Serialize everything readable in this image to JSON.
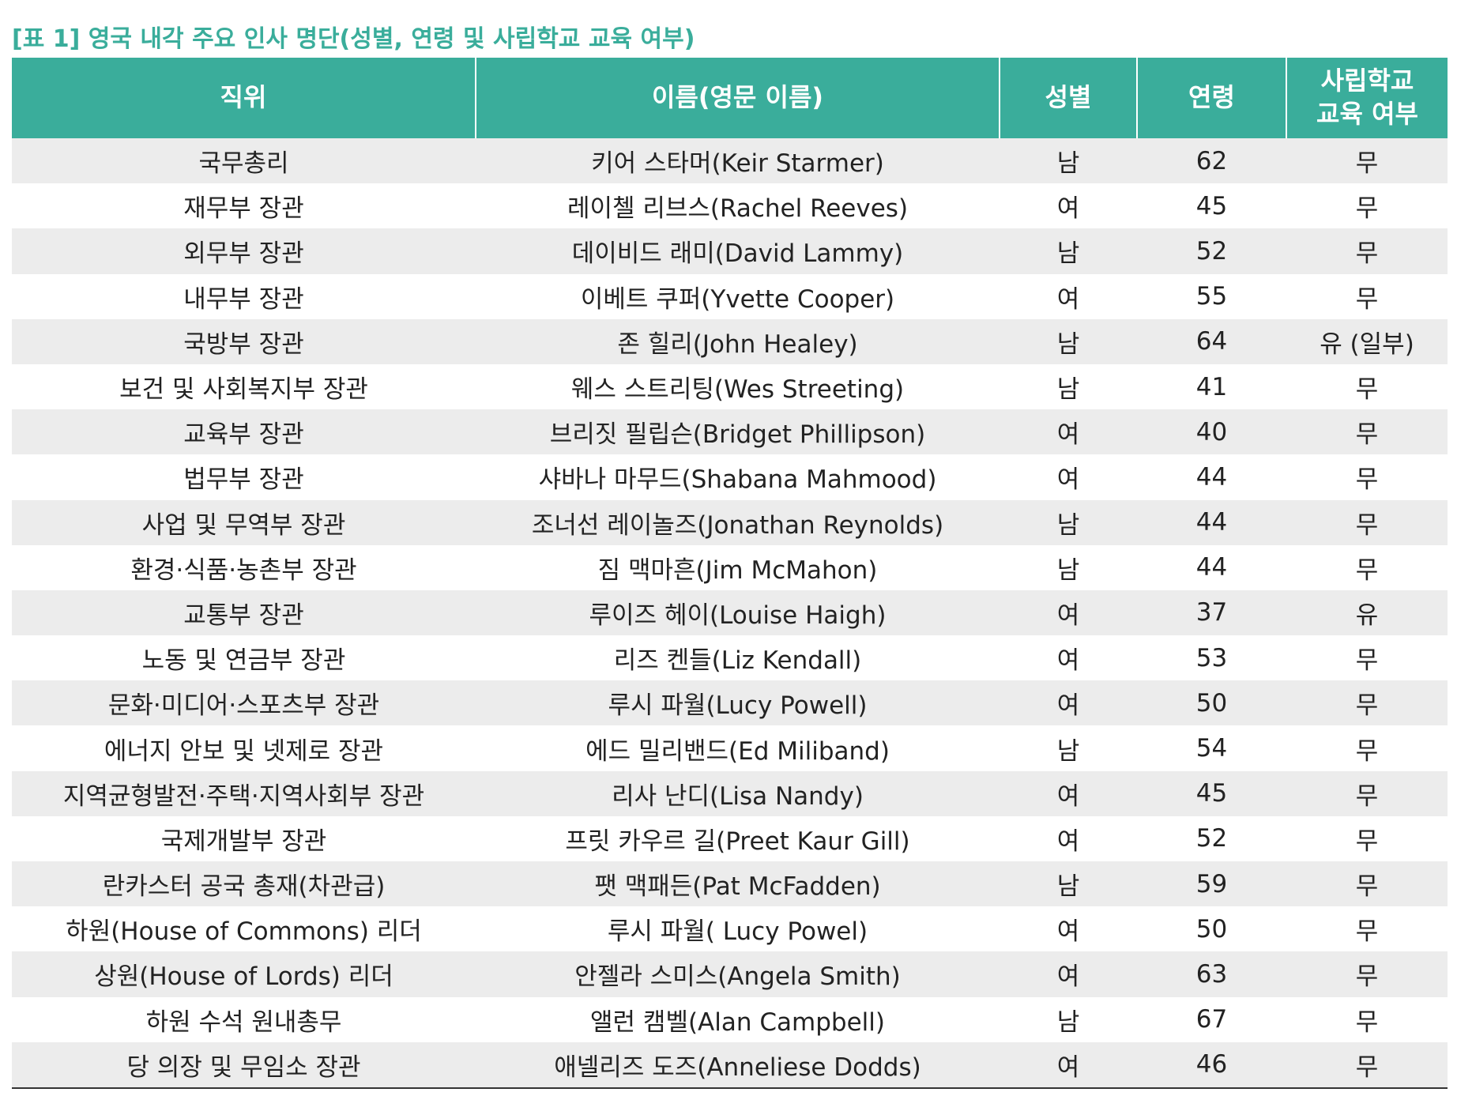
{
  "title": "[표 1] 영국 내각 주요 인사 명단(성별, 연령 및 사립학교 교육 여부)",
  "table": {
    "header": [
      "직위",
      "이름(영문 이름)",
      "성별",
      "연령",
      "사립학교 교육 여부"
    ],
    "rows": [
      [
        "국무총리",
        "키어 스타머(Keir Starmer)",
        "남",
        62,
        "무"
      ],
      [
        "재무부 장관",
        "레이첼 리브스(Rachel Reeves)",
        "여",
        45,
        "무"
      ],
      [
        "외무부 장관",
        "데이비드 래미(David Lammy)",
        "남",
        52,
        "무"
      ],
      [
        "내무부 장관",
        "이베트 쿠퍼(Yvette Cooper)",
        "여",
        55,
        "무"
      ],
      [
        "국방부 장관",
        "존 힐리(John Healey)",
        "남",
        64,
        "유 (일부)"
      ],
      [
        "보건 및 사회복지부 장관",
        "웨스 스트리팅(Wes Streeting)",
        "남",
        41,
        "무"
      ],
      [
        "교육부 장관",
        "브리짓 필립슨(Bridget Phillipson)",
        "여",
        40,
        "무"
      ],
      [
        "법무부 장관",
        "샤바나 마무드(Shabana Mahmood)",
        "여",
        44,
        "무"
      ],
      [
        "사업 및 무역부 장관",
        "조너선 레이놀즈(Jonathan Reynolds)",
        "남",
        44,
        "무"
      ],
      [
        "환경·식품·농촌부 장관",
        "짐 맥마흔(Jim McMahon)",
        "남",
        44,
        "무"
      ],
      [
        "교통부 장관",
        "루이즈 헤이(Louise Haigh)",
        "여",
        37,
        "유"
      ],
      [
        "노동 및 연금부 장관",
        "리즈 켄들(Liz Kendall)",
        "여",
        53,
        "무"
      ],
      [
        "문화·미디어·스포츠부 장관",
        "루시 파월(Lucy Powell)",
        "여",
        50,
        "무"
      ],
      [
        "에너지 안보 및 넷제로 장관",
        "에드 밀리밴드(Ed Miliband)",
        "남",
        54,
        "무"
      ],
      [
        "지역균형발전·주택·지역사회부 장관",
        "리사 난디(Lisa Nandy)",
        "여",
        45,
        "무"
      ],
      [
        "국제개발부 장관",
        "프릿 카우르 길(Preet Kaur Gill)",
        "여",
        52,
        "무"
      ],
      [
        "란카스터 공국 총재(차관급)",
        "팻 맥패든(Pat McFadden)",
        "남",
        59,
        "무"
      ],
      [
        "하원(House of Commons) 리더",
        "루시 파월( Lucy Powel)",
        "여",
        50,
        "무"
      ],
      [
        "상원(House of Lords) 리더",
        "안젤라 스미스(Angela Smith)",
        "여",
        63,
        "무"
      ],
      [
        "하원 수석 원내총무",
        "앨런 캠벨(Alan Campbell)",
        "남",
        67,
        "무"
      ],
      [
        "당 의장 및 무임소 장관",
        "애넬리즈 도즈(Anneliese Dodds)",
        "여",
        46,
        "무"
      ]
    ]
  }
}
